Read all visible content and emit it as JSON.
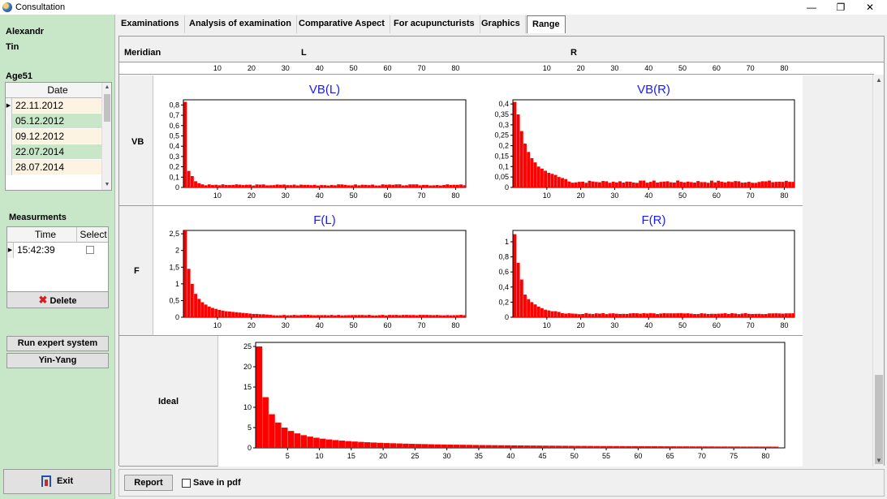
{
  "window": {
    "title": "Consultation",
    "controls": [
      "—",
      "❐",
      "✕"
    ]
  },
  "patient": {
    "first_name": "Alexandr",
    "last_name": "Tin",
    "age_label": "Age51"
  },
  "dates_grid": {
    "header": "Date",
    "rows": [
      "22.11.2012",
      "05.12.2012",
      "09.12.2012",
      "22.07.2014",
      "28.07.2014"
    ],
    "selected_index": 0
  },
  "measurements": {
    "label": "Measurments",
    "headers": [
      "Time",
      "Select"
    ],
    "rows": [
      {
        "time": "15:42:39",
        "selected": false
      }
    ],
    "delete_label": "Delete"
  },
  "buttons": {
    "expert_system": "Run expert system",
    "yin_yang": "Yin-Yang",
    "exit": "Exit",
    "report": "Report",
    "save_pdf": "Save in pdf"
  },
  "tabs": [
    {
      "label": "Examinations",
      "active": false
    },
    {
      "label": "Analysis of examination",
      "active": false
    },
    {
      "label": "Comparative Aspect",
      "active": false
    },
    {
      "label": "For acupuncturists",
      "active": false
    },
    {
      "label": "Graphics",
      "active": false
    },
    {
      "label": "Range",
      "active": true
    }
  ],
  "range_header": {
    "meridian": "Meridian",
    "left": "L",
    "right": "R"
  },
  "colors": {
    "bar": "#ff0000",
    "title": "#1a1aff",
    "panel_green": "#c8e6c8"
  },
  "chart_data": [
    {
      "type": "bar",
      "title": "VB(L)",
      "row": "VB",
      "xlim": [
        0,
        83
      ],
      "ylim": [
        0,
        0.85
      ],
      "yticks": [
        0,
        0.1,
        0.2,
        0.3,
        0.4,
        0.5,
        0.6,
        0.7,
        0.8
      ],
      "ytick_labels": [
        "0",
        "0,1",
        "0,2",
        "0,3",
        "0,4",
        "0,5",
        "0,6",
        "0,7",
        "0,8"
      ],
      "xticks": [
        10,
        20,
        30,
        40,
        50,
        60,
        70,
        80
      ],
      "values_head": [
        0.83,
        0.16,
        0.11,
        0.06,
        0.04,
        0.03
      ],
      "tail_level": 0.022,
      "tail_jitter": 0.012,
      "seed": 3
    },
    {
      "type": "bar",
      "title": "VB(R)",
      "row": "VB",
      "xlim": [
        0,
        83
      ],
      "ylim": [
        0,
        0.42
      ],
      "yticks": [
        0,
        0.05,
        0.1,
        0.15,
        0.2,
        0.25,
        0.3,
        0.35,
        0.4
      ],
      "ytick_labels": [
        "0",
        "0,05",
        "0,1",
        "0,15",
        "0,2",
        "0,25",
        "0,3",
        "0,35",
        "0,4"
      ],
      "xticks": [
        10,
        20,
        30,
        40,
        50,
        60,
        70,
        80
      ],
      "values_head": [
        0.41,
        0.35,
        0.27,
        0.21,
        0.17,
        0.14,
        0.12,
        0.1,
        0.09,
        0.08,
        0.07,
        0.065,
        0.06,
        0.05,
        0.045,
        0.04
      ],
      "tail_level": 0.025,
      "tail_jitter": 0.012,
      "seed": 7
    },
    {
      "type": "bar",
      "title": "F(L)",
      "row": "F",
      "xlim": [
        0,
        83
      ],
      "ylim": [
        0,
        2.6
      ],
      "yticks": [
        0,
        0.5,
        1,
        1.5,
        2,
        2.5
      ],
      "ytick_labels": [
        "0",
        "0,5",
        "1",
        "1,5",
        "2",
        "2,5"
      ],
      "xticks": [
        10,
        20,
        30,
        40,
        50,
        60,
        70,
        80
      ],
      "values_head": [
        2.6,
        1.45,
        1.0,
        0.7,
        0.55,
        0.45,
        0.38,
        0.32,
        0.28,
        0.25,
        0.22,
        0.2,
        0.18,
        0.17,
        0.16,
        0.15,
        0.14,
        0.13,
        0.12,
        0.11,
        0.1,
        0.1,
        0.09,
        0.09,
        0.08
      ],
      "tail_level": 0.06,
      "tail_jitter": 0.02,
      "seed": 11
    },
    {
      "type": "bar",
      "title": "F(R)",
      "row": "F",
      "xlim": [
        0,
        83
      ],
      "ylim": [
        0,
        1.15
      ],
      "yticks": [
        0,
        0.2,
        0.4,
        0.6,
        0.8,
        1
      ],
      "ytick_labels": [
        "0",
        "0,2",
        "0,4",
        "0,6",
        "0,8",
        "1"
      ],
      "xticks": [
        10,
        20,
        30,
        40,
        50,
        60,
        70,
        80
      ],
      "values_head": [
        1.1,
        0.72,
        0.5,
        0.3,
        0.24,
        0.2,
        0.17,
        0.14,
        0.12,
        0.1,
        0.09,
        0.08,
        0.08,
        0.07
      ],
      "tail_level": 0.045,
      "tail_jitter": 0.015,
      "seed": 5
    },
    {
      "type": "bar",
      "title": "",
      "row": "Ideal",
      "xlim": [
        0,
        83
      ],
      "ylim": [
        0,
        26
      ],
      "yticks": [
        0,
        5,
        10,
        15,
        20,
        25
      ],
      "ytick_labels": [
        "0",
        "5",
        "10",
        "15",
        "20",
        "25"
      ],
      "xticks": [
        5,
        10,
        15,
        20,
        25,
        30,
        35,
        40,
        45,
        50,
        55,
        60,
        65,
        70,
        75,
        80
      ],
      "values_head": [
        25,
        12.5,
        8.3,
        6.25,
        5,
        4.17,
        3.57,
        3.13,
        2.78,
        2.5,
        2.27,
        2.08,
        1.92,
        1.79,
        1.67,
        1.56,
        1.47,
        1.39,
        1.32,
        1.25,
        1.19,
        1.14,
        1.09,
        1.04,
        1.0,
        0.96,
        0.93,
        0.89,
        0.86,
        0.83,
        0.81,
        0.78,
        0.76,
        0.74,
        0.71,
        0.69,
        0.68,
        0.66,
        0.64,
        0.63,
        0.61,
        0.6,
        0.58,
        0.57,
        0.56,
        0.54,
        0.53,
        0.52,
        0.51,
        0.5,
        0.49,
        0.48,
        0.47,
        0.46,
        0.45,
        0.45,
        0.44,
        0.43,
        0.42,
        0.42,
        0.41,
        0.4,
        0.4,
        0.39,
        0.38,
        0.38,
        0.37,
        0.37,
        0.36,
        0.36,
        0.35,
        0.35,
        0.34,
        0.34,
        0.33,
        0.33,
        0.32,
        0.32,
        0.32,
        0.31,
        0.31,
        0.3
      ],
      "tail_level": 0,
      "tail_jitter": 0,
      "seed": 1
    }
  ],
  "row_labels": [
    "VB",
    "F",
    "Ideal"
  ],
  "axis_strip_ticks": [
    10,
    20,
    30,
    40,
    50,
    60,
    70,
    80
  ]
}
